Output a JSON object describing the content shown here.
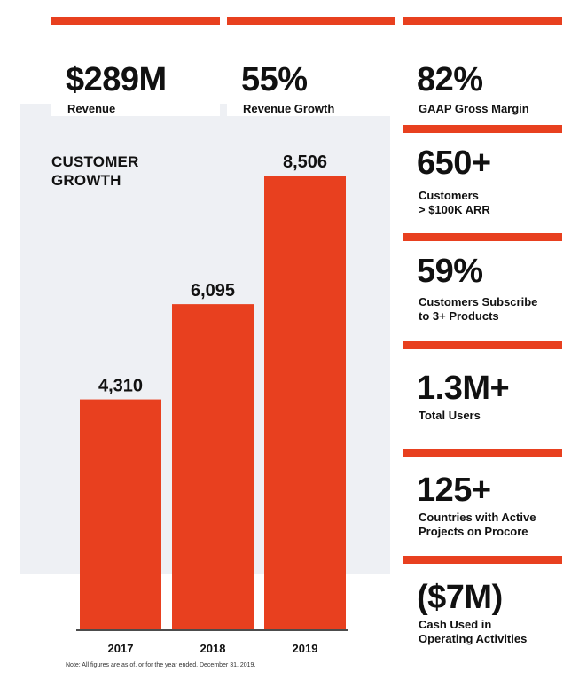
{
  "colors": {
    "accent": "#e8401f",
    "panel": "#eef0f4",
    "text": "#111111"
  },
  "top_stats": [
    {
      "value": "$289M",
      "label": "Revenue"
    },
    {
      "value": "55%",
      "label": "Revenue Growth"
    },
    {
      "value": "82%",
      "label": "GAAP Gross Margin"
    }
  ],
  "side_stats": [
    {
      "value": "650+",
      "label": "Customers\n> $100K ARR"
    },
    {
      "value": "59%",
      "label": "Customers Subscribe\nto 3+ Products"
    },
    {
      "value": "1.3M+",
      "label": "Total Users"
    },
    {
      "value": "125+",
      "label": "Countries with Active\nProjects on Procore"
    },
    {
      "value": "($7M)",
      "label": "Cash Used in\nOperating Activities"
    }
  ],
  "chart_data": {
    "type": "bar",
    "title": "CUSTOMER\nGROWTH",
    "categories": [
      "2017",
      "2018",
      "2019"
    ],
    "values": [
      4310,
      6095,
      8506
    ],
    "value_labels": [
      "4,310",
      "6,095",
      "8,506"
    ],
    "ylim": [
      0,
      8506
    ],
    "grid": false,
    "legend": "none",
    "bar_color": "#e8401f"
  },
  "footnote": "Note: All figures are as of, or for the year ended, December 31, 2019."
}
